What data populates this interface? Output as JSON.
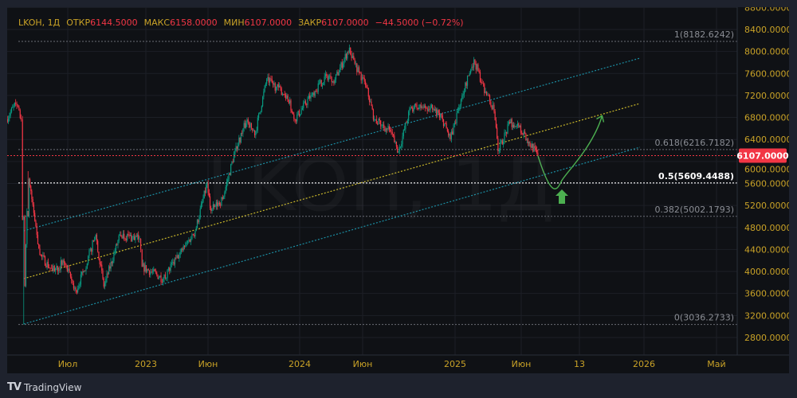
{
  "header": {
    "symbol": "LKOH, 1Д",
    "open_label": "ОТКР",
    "open_value": "6144.5000",
    "high_label": "МАКС",
    "high_value": "6158.0000",
    "low_label": "МИН",
    "low_value": "6107.0000",
    "close_label": "ЗАКР",
    "close_value": "6107.0000",
    "change": "−44.5000 (−0.72%)"
  },
  "watermark": "LKOH, 1Д",
  "branding": {
    "logo_text": "TradingView"
  },
  "colors": {
    "up": "#089981",
    "down": "#f23645",
    "axis_text": "#c9a227",
    "channel_outer": "#1b8ea3",
    "channel_mid": "#c8b62a",
    "projection": "#4caf50",
    "last_price": "#f23645"
  },
  "chart_data": {
    "type": "candlestick",
    "title": "LKOH, 1Д",
    "last_price": 6107,
    "last_price_label": "6107.0000",
    "ylim": [
      2600,
      8900
    ],
    "y_ticks": [
      "8800.0000",
      "8400.0000",
      "8000.0000",
      "7600.0000",
      "7200.0000",
      "6800.0000",
      "6400.0000",
      "6000.0000",
      "5600.0000",
      "5200.0000",
      "4800.0000",
      "4400.0000",
      "4000.0000",
      "3600.0000",
      "3200.0000",
      "2800.0000"
    ],
    "x_ticks": [
      "Июл",
      "2023",
      "Июн",
      "2024",
      "Июн",
      "2025",
      "Июн",
      "13",
      "2026",
      "Май"
    ],
    "price_path": [
      [
        "2022-03-24",
        6765
      ],
      [
        "2022-04-08",
        7050
      ],
      [
        "2022-04-17",
        6765
      ],
      [
        "2022-04-21",
        3036
      ],
      [
        "2022-04-28",
        5824
      ],
      [
        "2022-05-04",
        5317
      ],
      [
        "2022-05-17",
        4305
      ],
      [
        "2022-06-06",
        4015
      ],
      [
        "2022-06-25",
        4160
      ],
      [
        "2022-07-20",
        3650
      ],
      [
        "2022-08-08",
        4015
      ],
      [
        "2022-09-05",
        4666
      ],
      [
        "2022-09-24",
        3725
      ],
      [
        "2022-11-01",
        4666
      ],
      [
        "2022-12-17",
        4594
      ],
      [
        "2022-12-23",
        4087
      ],
      [
        "2023-02-12",
        3870
      ],
      [
        "2023-03-23",
        4305
      ],
      [
        "2023-05-01",
        4739
      ],
      [
        "2023-05-30",
        5607
      ],
      [
        "2023-06-08",
        5100
      ],
      [
        "2023-07-05",
        5317
      ],
      [
        "2023-08-03",
        6186
      ],
      [
        "2023-08-31",
        6765
      ],
      [
        "2023-09-18",
        6476
      ],
      [
        "2023-10-16",
        7488
      ],
      [
        "2023-12-02",
        7200
      ],
      [
        "2023-12-21",
        6765
      ],
      [
        "2024-01-28",
        7200
      ],
      [
        "2024-03-06",
        7561
      ],
      [
        "2024-03-26",
        7488
      ],
      [
        "2024-04-30",
        8067
      ],
      [
        "2024-05-13",
        7778
      ],
      [
        "2024-06-10",
        7344
      ],
      [
        "2024-06-28",
        6765
      ],
      [
        "2024-08-04",
        6548
      ],
      [
        "2024-08-23",
        6186
      ],
      [
        "2024-09-20",
        6982
      ],
      [
        "2024-11-05",
        6982
      ],
      [
        "2024-12-03",
        6765
      ],
      [
        "2024-12-21",
        6403
      ],
      [
        "2025-01-17",
        7200
      ],
      [
        "2025-02-13",
        7850
      ],
      [
        "2025-03-04",
        7416
      ],
      [
        "2025-03-31",
        6910
      ],
      [
        "2025-04-09",
        6186
      ],
      [
        "2025-05-06",
        6693
      ],
      [
        "2025-05-24",
        6693
      ],
      [
        "2025-06-11",
        6403
      ],
      [
        "2025-06-30",
        6107
      ]
    ],
    "fibonacci": [
      {
        "level": 1,
        "value": 8182.6242,
        "label": "1(8182.6242)"
      },
      {
        "level": 0.618,
        "value": 6216.7182,
        "label": "0.618(6216.7182)"
      },
      {
        "level": 0.5,
        "value": 5609.4488,
        "label": "0.5(5609.4488)"
      },
      {
        "level": 0.382,
        "value": 5002.1793,
        "label": "0.382(5002.1793)"
      },
      {
        "level": 0,
        "value": 3036.2733,
        "label": "0(3036.2733)"
      }
    ],
    "channel": {
      "upper": [
        [
          "2022-04-21",
          4739
        ],
        [
          "2025-12-25",
          7879
        ]
      ],
      "middle": [
        [
          "2022-04-21",
          3870
        ],
        [
          "2025-12-25",
          7054
        ]
      ],
      "lower": [
        [
          "2022-04-21",
          3045
        ],
        [
          "2025-12-25",
          6258
        ]
      ]
    },
    "projection": [
      [
        "2025-06-30",
        6107
      ],
      [
        "2025-08-10",
        5640
      ],
      [
        "2025-10-20",
        6830
      ]
    ]
  }
}
